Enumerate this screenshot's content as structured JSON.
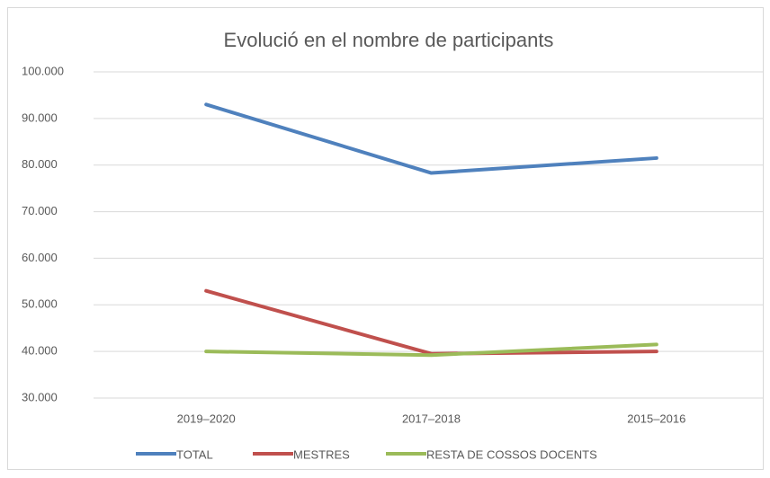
{
  "chart_data": {
    "type": "line",
    "title": "Evolució en el nombre de participants",
    "categories": [
      "2019–2020",
      "2017–2018",
      "2015–2016"
    ],
    "series": [
      {
        "name": "TOTAL",
        "color": "#4f81bd",
        "values": [
          93000,
          78300,
          81500
        ]
      },
      {
        "name": "MESTRES",
        "color": "#c0504d",
        "values": [
          53000,
          39500,
          40000
        ]
      },
      {
        "name": "RESTA DE COSSOS DOCENTS",
        "color": "#9bbb59",
        "values": [
          40000,
          39200,
          41500
        ]
      }
    ],
    "ylim": [
      30000,
      100000
    ],
    "yticks": [
      {
        "value": 30000,
        "label": "30.000"
      },
      {
        "value": 40000,
        "label": "40.000"
      },
      {
        "value": 50000,
        "label": "50.000"
      },
      {
        "value": 60000,
        "label": "60.000"
      },
      {
        "value": 70000,
        "label": "70.000"
      },
      {
        "value": 80000,
        "label": "80.000"
      },
      {
        "value": 90000,
        "label": "90.000"
      },
      {
        "value": 100000,
        "label": "100.000"
      }
    ],
    "grid": true,
    "legend": "bottom"
  }
}
